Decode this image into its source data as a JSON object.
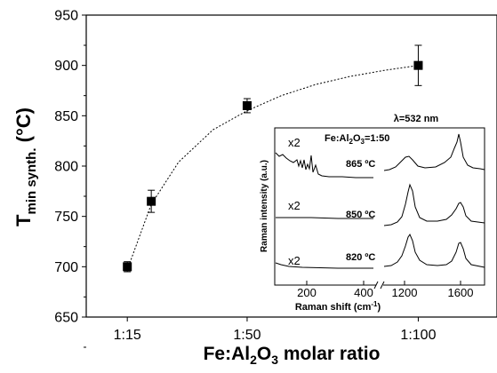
{
  "chart_data": [
    {
      "type": "scatter",
      "x_axis_label": "Fe:Al2O3 molar ratio",
      "x_axis_label_parts": [
        "Fe:Al",
        "2",
        "O",
        "3",
        " molar ratio"
      ],
      "y_axis_label_parts": [
        "T",
        "min synth.",
        " (°C)"
      ],
      "x_ticks": [
        {
          "label": "1:15",
          "value": 15
        },
        {
          "label": "1:50",
          "value": 50
        },
        {
          "label": "1:100",
          "value": 100
        }
      ],
      "y_ticks": [
        650,
        700,
        750,
        800,
        850,
        900,
        950
      ],
      "xlim": [
        3,
        123
      ],
      "ylim": [
        650,
        950
      ],
      "points": [
        {
          "x": 15,
          "y": 700,
          "err": 5
        },
        {
          "x": 22,
          "y": 765,
          "err": 11
        },
        {
          "x": 50,
          "y": 860,
          "err": 7
        },
        {
          "x": 100,
          "y": 900,
          "err": 20
        }
      ],
      "fit": {
        "style": "dotted",
        "x": [
          15,
          22,
          30,
          40,
          50,
          60,
          70,
          80,
          90,
          100
        ],
        "y": [
          697,
          762,
          804,
          836,
          855,
          870,
          881,
          889,
          895,
          900
        ]
      }
    },
    {
      "type": "line",
      "role": "inset",
      "xlabel_parts": [
        "Raman shift (cm",
        "-1",
        ")"
      ],
      "ylabel": "Raman intensity (a.u.)",
      "wavelength_label": "λ=532 nm",
      "ratio_label_parts": [
        "Fe:Al",
        "2",
        "O",
        "3",
        "=1:50"
      ],
      "x_ticks": [
        "200",
        "400",
        "1200",
        "1600"
      ],
      "series": [
        {
          "name": "865 ºC",
          "multiplier": "x2"
        },
        {
          "name": "850 ºC",
          "multiplier": "x2"
        },
        {
          "name": "820 ºC",
          "multiplier": "x2"
        }
      ]
    }
  ]
}
